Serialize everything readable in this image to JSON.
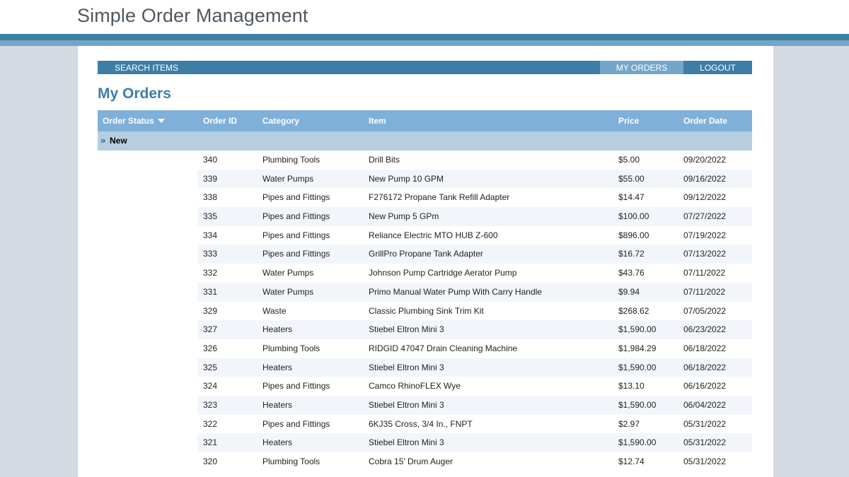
{
  "app": {
    "title": "Simple Order Management"
  },
  "nav": {
    "search_label": "SEARCH ITEMS",
    "my_orders_label": "MY ORDERS",
    "logout_label": "LOGOUT"
  },
  "page": {
    "title": "My Orders"
  },
  "table": {
    "headers": {
      "status": "Order Status",
      "id": "Order ID",
      "category": "Category",
      "item": "Item",
      "price": "Price",
      "date": "Order Date"
    },
    "group_label": "New",
    "rows": [
      {
        "id": "340",
        "category": "Plumbing Tools",
        "item": "Drill Bits",
        "price": "$5.00",
        "date": "09/20/2022"
      },
      {
        "id": "339",
        "category": "Water Pumps",
        "item": "New Pump 10 GPM",
        "price": "$55.00",
        "date": "09/16/2022"
      },
      {
        "id": "338",
        "category": "Pipes and Fittings",
        "item": "F276172 Propane Tank Refill Adapter",
        "price": "$14.47",
        "date": "09/12/2022"
      },
      {
        "id": "335",
        "category": "Pipes and Fittings",
        "item": "New Pump 5 GPm",
        "price": "$100.00",
        "date": "07/27/2022"
      },
      {
        "id": "334",
        "category": "Pipes and Fittings",
        "item": "Reliance Electric MTO HUB Z-600",
        "price": "$896.00",
        "date": "07/19/2022"
      },
      {
        "id": "333",
        "category": "Pipes and Fittings",
        "item": "GrillPro Propane Tank Adapter",
        "price": "$16.72",
        "date": "07/13/2022"
      },
      {
        "id": "332",
        "category": "Water Pumps",
        "item": "Johnson Pump Cartridge Aerator Pump",
        "price": "$43.76",
        "date": "07/11/2022"
      },
      {
        "id": "331",
        "category": "Water Pumps",
        "item": "Primo Manual Water Pump With Carry Handle",
        "price": "$9.94",
        "date": "07/11/2022"
      },
      {
        "id": "329",
        "category": "Waste",
        "item": "Classic Plumbing Sink Trim Kit",
        "price": "$268.62",
        "date": "07/05/2022"
      },
      {
        "id": "327",
        "category": "Heaters",
        "item": "Stiebel Eltron Mini 3",
        "price": "$1,590.00",
        "date": "06/23/2022"
      },
      {
        "id": "326",
        "category": "Plumbing Tools",
        "item": "RIDGID 47047 Drain Cleaning Machine",
        "price": "$1,984.29",
        "date": "06/18/2022"
      },
      {
        "id": "325",
        "category": "Heaters",
        "item": "Stiebel Eltron Mini 3",
        "price": "$1,590.00",
        "date": "06/18/2022"
      },
      {
        "id": "324",
        "category": "Pipes and Fittings",
        "item": "Camco RhinoFLEX Wye",
        "price": "$13.10",
        "date": "06/16/2022"
      },
      {
        "id": "323",
        "category": "Heaters",
        "item": "Stiebel Eltron Mini 3",
        "price": "$1,590.00",
        "date": "06/04/2022"
      },
      {
        "id": "322",
        "category": "Pipes and Fittings",
        "item": "6KJ35 Cross, 3/4 In., FNPT",
        "price": "$2.97",
        "date": "05/31/2022"
      },
      {
        "id": "321",
        "category": "Heaters",
        "item": "Stiebel Eltron Mini 3",
        "price": "$1,590.00",
        "date": "05/31/2022"
      },
      {
        "id": "320",
        "category": "Plumbing Tools",
        "item": "Cobra 15' Drum Auger",
        "price": "$12.74",
        "date": "05/31/2022"
      }
    ]
  },
  "icons": {
    "sort": "caret-down-icon",
    "group": "double-chevron-right-icon"
  },
  "colors": {
    "accent": "#3d7ea6",
    "nav_active": "#74a6c9",
    "header": "#7fb0d9",
    "group_row": "#b7cde0",
    "alt_row": "#f2f6fa"
  }
}
